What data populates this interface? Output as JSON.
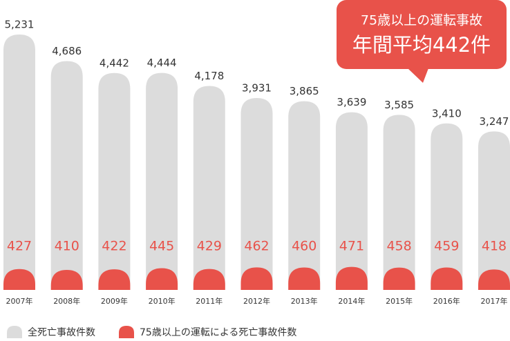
{
  "chart_data": {
    "type": "bar",
    "categories": [
      "2007年",
      "2008年",
      "2009年",
      "2010年",
      "2011年",
      "2012年",
      "2013年",
      "2014年",
      "2015年",
      "2016年",
      "2017年"
    ],
    "series": [
      {
        "name": "全死亡事故件数",
        "color": "#dcdcdc",
        "values": [
          5231,
          4686,
          4442,
          4444,
          4178,
          3931,
          3865,
          3639,
          3585,
          3410,
          3247
        ],
        "value_labels": [
          "5,231",
          "4,686",
          "4,442",
          "4,444",
          "4,178",
          "3,931",
          "3,865",
          "3,639",
          "3,585",
          "3,410",
          "3,247"
        ]
      },
      {
        "name": "75歳以上の運転による死亡事故件数",
        "color": "#e8524a",
        "values": [
          427,
          410,
          422,
          445,
          429,
          462,
          460,
          471,
          458,
          459,
          418
        ]
      }
    ],
    "annotation": {
      "line1": "75歳以上の運転事故",
      "line2": "年間平均442件"
    }
  }
}
